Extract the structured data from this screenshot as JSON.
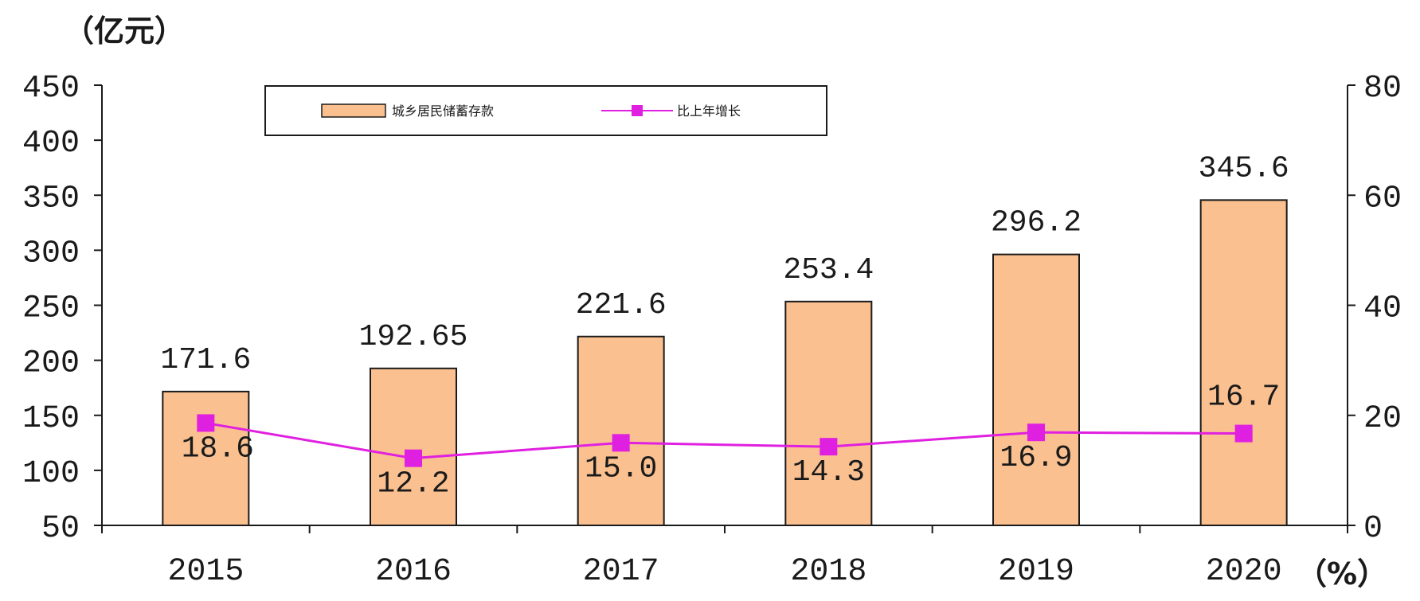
{
  "chart_data": {
    "type": "bar",
    "categories": [
      "2015",
      "2016",
      "2017",
      "2018",
      "2019",
      "2020"
    ],
    "series": [
      {
        "name": "城乡居民储蓄存款",
        "type": "bar",
        "axis": "left",
        "values": [
          171.6,
          192.65,
          221.6,
          253.4,
          296.2,
          345.6
        ],
        "labels": [
          "171.6",
          "192.65",
          "221.6",
          "253.4",
          "296.2",
          "345.6"
        ],
        "color": "#FAC090"
      },
      {
        "name": "比上年增长",
        "type": "line",
        "axis": "right",
        "values": [
          18.6,
          12.2,
          15.0,
          14.3,
          16.9,
          16.7
        ],
        "labels": [
          "18.6",
          "12.2",
          "15.0",
          "14.3",
          "16.9",
          "16.7"
        ],
        "color": "#E020E0"
      }
    ],
    "y_left": {
      "unit": "（亿元）",
      "min": 50,
      "max": 450,
      "ticks": [
        50,
        100,
        150,
        200,
        250,
        300,
        350,
        400,
        450
      ]
    },
    "y_right": {
      "unit": "（%）",
      "min": 0,
      "max": 80,
      "ticks": [
        0,
        20,
        40,
        60,
        80
      ]
    },
    "legend": {
      "position": "top-left"
    },
    "grid": false
  }
}
